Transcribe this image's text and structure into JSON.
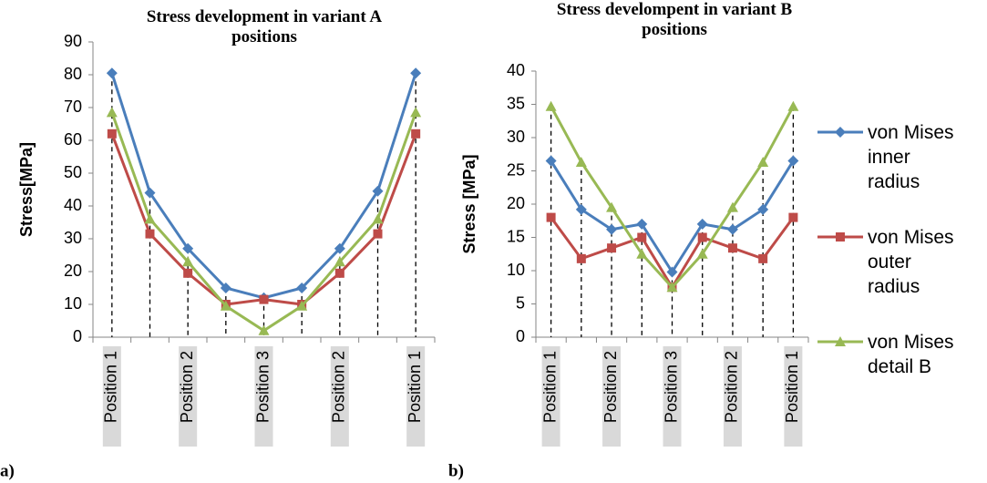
{
  "chart_data": [
    {
      "type": "line",
      "title": "Stress development in variant A positions",
      "panel_label": "a)",
      "ylabel": "Stress[MPa]",
      "categories": [
        "Position 1",
        null,
        "Position 2",
        null,
        "Position 3",
        null,
        "Position 2",
        null,
        "Position 1"
      ],
      "ylim": [
        0,
        90
      ],
      "yticks": [
        0,
        10,
        20,
        30,
        40,
        50,
        60,
        70,
        80,
        90
      ],
      "drop_lines": true,
      "series": [
        {
          "color": "#4a7ebb",
          "marker": "diamond",
          "values": [
            80.5,
            44,
            27,
            15,
            12,
            15,
            27,
            44.5,
            80.5
          ]
        },
        {
          "color": "#be4b48",
          "marker": "square",
          "values": [
            62,
            31.5,
            19.5,
            10,
            11.5,
            10,
            19.5,
            31.5,
            62
          ]
        },
        {
          "color": "#98b954",
          "marker": "triangle",
          "values": [
            68.5,
            36,
            23,
            9.5,
            2,
            9.5,
            23,
            36,
            68.5
          ]
        }
      ]
    },
    {
      "type": "line",
      "title": "Stress develompent in variant B positions",
      "panel_label": "b)",
      "ylabel": "Stress [MPa]",
      "categories": [
        "Position 1",
        null,
        "Position 2",
        null,
        "Position 3",
        null,
        "Position 2",
        null,
        "Position 1"
      ],
      "ylim": [
        0,
        40
      ],
      "yticks": [
        0,
        5,
        10,
        15,
        20,
        25,
        30,
        35,
        40
      ],
      "drop_lines": true,
      "legend": "right",
      "series": [
        {
          "name": "von Mises inner radius",
          "color": "#4a7ebb",
          "marker": "diamond",
          "values": [
            26.5,
            19.2,
            16.2,
            17,
            9.8,
            17,
            16.2,
            19.2,
            26.5
          ]
        },
        {
          "name": "von Mises outer radius",
          "color": "#be4b48",
          "marker": "square",
          "values": [
            18,
            11.8,
            13.4,
            15,
            7.5,
            15,
            13.4,
            11.8,
            18
          ]
        },
        {
          "name": "von Mises detail B",
          "color": "#98b954",
          "marker": "triangle",
          "values": [
            34.7,
            26.3,
            19.5,
            12.5,
            7.5,
            12.5,
            19.5,
            26.3,
            34.7
          ]
        }
      ]
    }
  ]
}
